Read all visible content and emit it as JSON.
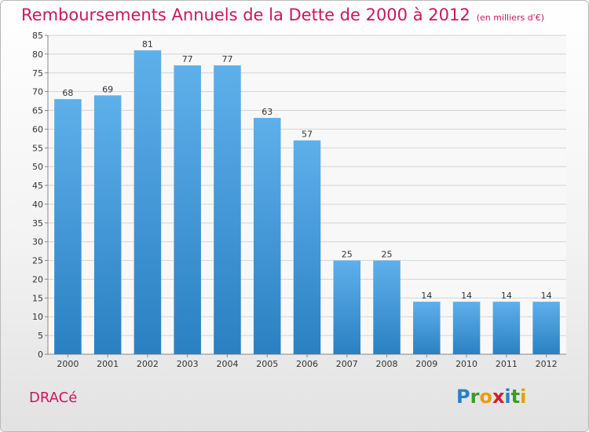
{
  "title": "Remboursements Annuels de la Dette de 2000 à 2012",
  "unit_note": "(en milliers d'€)",
  "commune": "DRACé",
  "logo": {
    "letters": [
      "P",
      "r",
      "o",
      "x",
      "i",
      "t",
      "i"
    ],
    "colors": [
      "#2a7fc6",
      "#3d9a2c",
      "#e5a100",
      "#cc1f2a",
      "#2a7fc6",
      "#3d9a2c",
      "#e5a100"
    ]
  },
  "colors": {
    "title": "#c8175f",
    "bar_light": "#5eb0ea",
    "bar_dark": "#2a80c2"
  },
  "chart_data": {
    "type": "bar",
    "categories": [
      "2000",
      "2001",
      "2002",
      "2003",
      "2004",
      "2005",
      "2006",
      "2007",
      "2008",
      "2009",
      "2010",
      "2011",
      "2012"
    ],
    "values": [
      68,
      69,
      81,
      77,
      77,
      63,
      57,
      25,
      25,
      14,
      14,
      14,
      14
    ],
    "ylim": [
      0,
      85
    ],
    "yticks": [
      0,
      5,
      10,
      15,
      20,
      25,
      30,
      35,
      40,
      45,
      50,
      55,
      60,
      65,
      70,
      75,
      80,
      85
    ],
    "grid": true
  }
}
